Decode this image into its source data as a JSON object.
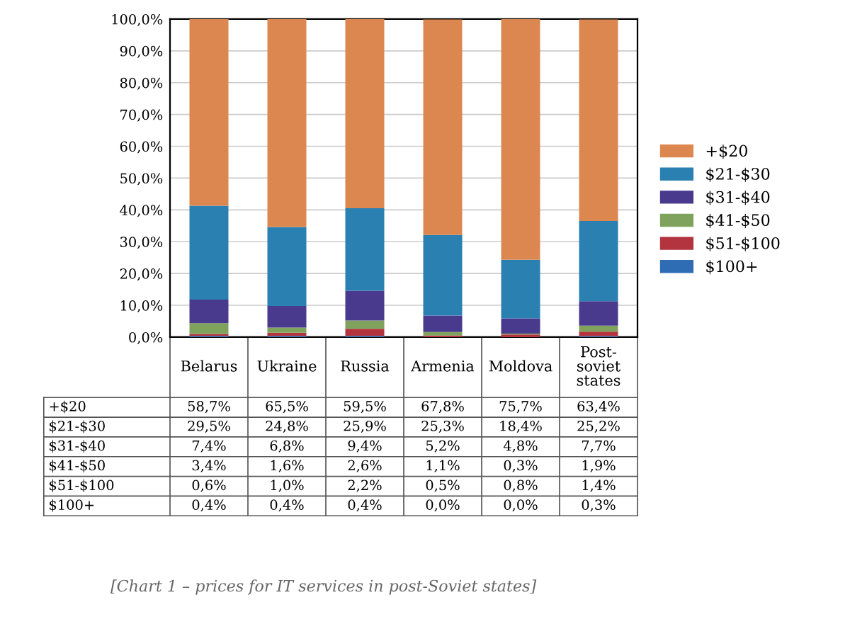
{
  "chart_data": {
    "type": "bar",
    "stacked": true,
    "categories": [
      "Belarus",
      "Ukraine",
      "Russia",
      "Armenia",
      "Moldova",
      "Post-soviet states"
    ],
    "series": [
      {
        "name": "$100+",
        "color": "#2e6db4",
        "values": [
          0.4,
          0.4,
          0.4,
          0.0,
          0.0,
          0.3
        ],
        "value_labels": [
          "0,4%",
          "0,4%",
          "0,4%",
          "0,0%",
          "0,0%",
          "0,3%"
        ]
      },
      {
        "name": "$51-$100",
        "color": "#b3343f",
        "values": [
          0.6,
          1.0,
          2.2,
          0.5,
          0.8,
          1.4
        ],
        "value_labels": [
          "0,6%",
          "1,0%",
          "2,2%",
          "0,5%",
          "0,8%",
          "1,4%"
        ]
      },
      {
        "name": "$41-$50",
        "color": "#7fa35c",
        "values": [
          3.4,
          1.6,
          2.6,
          1.1,
          0.3,
          1.9
        ],
        "value_labels": [
          "3,4%",
          "1,6%",
          "2,6%",
          "1,1%",
          "0,3%",
          "1,9%"
        ]
      },
      {
        "name": "$31-$40",
        "color": "#4a3a8e",
        "values": [
          7.4,
          6.8,
          9.4,
          5.2,
          4.8,
          7.7
        ],
        "value_labels": [
          "7,4%",
          "6,8%",
          "9,4%",
          "5,2%",
          "4,8%",
          "7,7%"
        ]
      },
      {
        "name": "$21-$30",
        "color": "#2b80b2",
        "values": [
          29.5,
          24.8,
          25.9,
          25.3,
          18.4,
          25.2
        ],
        "value_labels": [
          "29,5%",
          "24,8%",
          "25,9%",
          "25,3%",
          "18,4%",
          "25,2%"
        ]
      },
      {
        "name": "+$20",
        "color": "#dd8750",
        "values": [
          58.7,
          65.5,
          59.5,
          67.8,
          75.7,
          63.4
        ],
        "value_labels": [
          "58,7%",
          "65,5%",
          "59,5%",
          "67,8%",
          "75,7%",
          "63,4%"
        ]
      }
    ],
    "ylim": [
      0,
      100
    ],
    "yticks": [
      {
        "value": 0,
        "label": "0,0%"
      },
      {
        "value": 10,
        "label": "10,0%"
      },
      {
        "value": 20,
        "label": "20,0%"
      },
      {
        "value": 30,
        "label": "30,0%"
      },
      {
        "value": 40,
        "label": "40,0%"
      },
      {
        "value": 50,
        "label": "50,0%"
      },
      {
        "value": 60,
        "label": "60,0%"
      },
      {
        "value": 70,
        "label": "70,0%"
      },
      {
        "value": 80,
        "label": "80,0%"
      },
      {
        "value": 90,
        "label": "90,0%"
      },
      {
        "value": 100,
        "label": "100,0%"
      }
    ],
    "grid": "y",
    "legend": "right",
    "annotations": [
      "[Chart 1 – prices for IT services in post-Soviet states]"
    ]
  }
}
